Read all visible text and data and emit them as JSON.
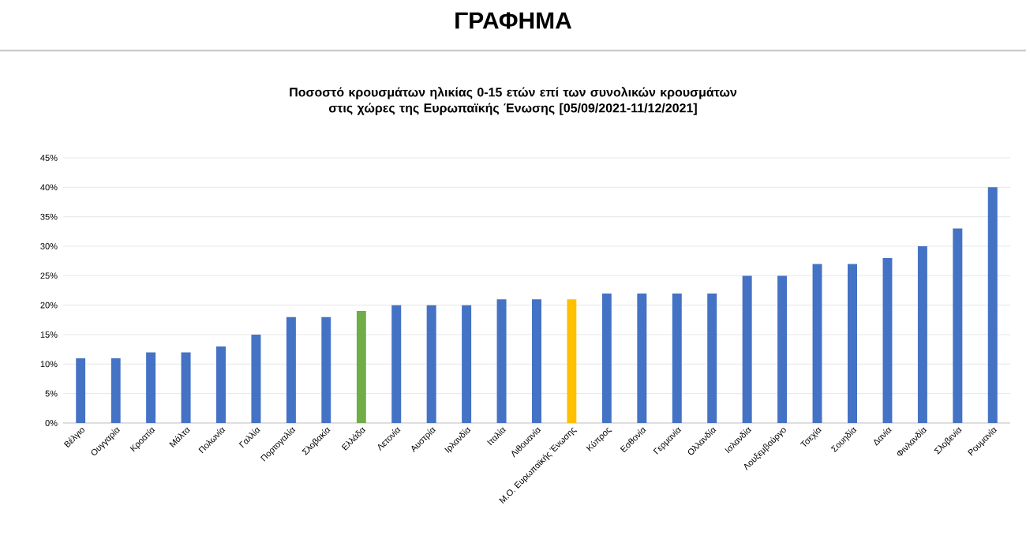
{
  "chart_data": {
    "type": "bar",
    "title": "ΓΡΑΦΗΜΑ",
    "subtitle": "Ποσοστό κρουσμάτων ηλικίας 0-15 ετών επί των συνολικών κρουσμάτων στις χώρες της Ευρωπαϊκής Ένωσης [05/09/2021-11/12/2021]",
    "categories": [
      "Βέλγιο",
      "Ουγγαρία",
      "Κροατία",
      "Μάλτα",
      "Πολωνία",
      "Γαλλία",
      "Πορτογαλία",
      "Σλοβακία",
      "Ελλάδα",
      "Λετονία",
      "Αυστρία",
      "Ιρλανδία",
      "Ιταλία",
      "Λιθουανία",
      "Μ.Ο. Ευρωπαϊκής Ένωσης",
      "Κύπρος",
      "Εσθονία",
      "Γερμανία",
      "Ολλανδία",
      "Ισλανδία",
      "Λουξεμβούργο",
      "Τσεχία",
      "Σουηδία",
      "Δανία",
      "Φινλανδία",
      "Σλοβενία",
      "Ρουμανία"
    ],
    "values": [
      11,
      11,
      12,
      12,
      13,
      15,
      18,
      18,
      19,
      20,
      20,
      20,
      21,
      21,
      21,
      22,
      22,
      22,
      22,
      25,
      25,
      27,
      27,
      28,
      30,
      33,
      40
    ],
    "colors": [
      "#4472c4",
      "#4472c4",
      "#4472c4",
      "#4472c4",
      "#4472c4",
      "#4472c4",
      "#4472c4",
      "#4472c4",
      "#70ad47",
      "#4472c4",
      "#4472c4",
      "#4472c4",
      "#4472c4",
      "#4472c4",
      "#ffc000",
      "#4472c4",
      "#4472c4",
      "#4472c4",
      "#4472c4",
      "#4472c4",
      "#4472c4",
      "#4472c4",
      "#4472c4",
      "#4472c4",
      "#4472c4",
      "#4472c4",
      "#4472c4"
    ],
    "ylim": [
      0,
      45
    ],
    "yticks": [
      {
        "value": 0,
        "label": "0%"
      },
      {
        "value": 5,
        "label": "5%"
      },
      {
        "value": 10,
        "label": "10%"
      },
      {
        "value": 15,
        "label": "15%"
      },
      {
        "value": 20,
        "label": "20%"
      },
      {
        "value": 25,
        "label": "25%"
      },
      {
        "value": 30,
        "label": "30%"
      },
      {
        "value": 35,
        "label": "35%"
      },
      {
        "value": 40,
        "label": "40%"
      },
      {
        "value": 45,
        "label": "45%"
      }
    ],
    "grid": "y"
  }
}
